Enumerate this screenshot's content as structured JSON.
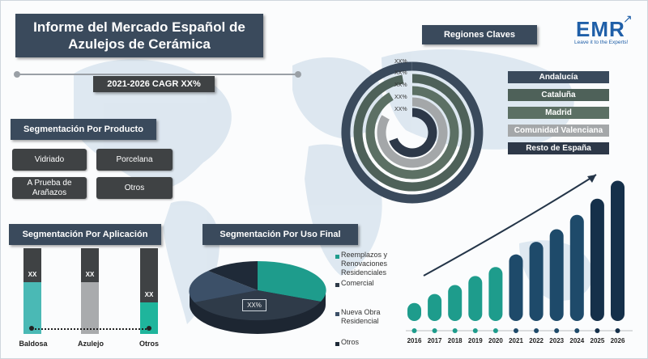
{
  "title": "Informe del Mercado Español de Azulejos de Cerámica",
  "cagr": "2021-2026 CAGR XX%",
  "logo": {
    "text": "EMR",
    "tagline": "Leave it to the Experts!"
  },
  "product": {
    "header": "Segmentación Por Producto",
    "items": [
      "Vidriado",
      "Porcelana",
      "A Prueba de Arañazos",
      "Otros"
    ]
  },
  "regions": {
    "header": "Regiones Claves",
    "items": [
      {
        "label": "Andalucía",
        "color": "#3a4a5c",
        "value_label": "XX%"
      },
      {
        "label": "Cataluña",
        "color": "#4e6159",
        "value_label": "XX%"
      },
      {
        "label": "Madrid",
        "color": "#5c7064",
        "value_label": "XX%"
      },
      {
        "label": "Comunidad Valenciana",
        "color": "#a4a7a9",
        "value_label": "XX%"
      },
      {
        "label": "Resto de España",
        "color": "#2d3848",
        "value_label": "XX%"
      }
    ]
  },
  "application": {
    "header": "Segmentación Por Aplicación",
    "categories": [
      "Baldosa",
      "Azulejo",
      "Otros"
    ],
    "bar_label": "XX",
    "colors": [
      "#4ab9b5",
      "#a9abad",
      "#1fb59c"
    ]
  },
  "end_use": {
    "header": "Segmentación Por Uso Final",
    "center_label": "XX%",
    "legend": [
      {
        "label": "Reemplazos y Renovaciones Residenciales",
        "color": "#1e9c8c"
      },
      {
        "label": "Comercial",
        "color": "#2f3b49"
      },
      {
        "label": "Nueva Obra Residencial",
        "color": "#3c5068"
      },
      {
        "label": "Otros",
        "color": "#1f2a38"
      }
    ]
  },
  "chart_data": {
    "type": "bar",
    "categories": [
      "2016",
      "2017",
      "2018",
      "2019",
      "2020",
      "2021",
      "2022",
      "2023",
      "2024",
      "2025",
      "2026"
    ],
    "values": [
      1.0,
      1.5,
      2.0,
      2.5,
      3.0,
      3.7,
      4.4,
      5.1,
      5.9,
      6.8,
      7.8
    ],
    "colors": [
      "#1e9c8c",
      "#1e9c8c",
      "#1e9c8c",
      "#1e9c8c",
      "#1e9c8c",
      "#1e4a6a",
      "#1e4a6a",
      "#1e4a6a",
      "#1e4a6a",
      "#15304a",
      "#15304a"
    ],
    "ylim": [
      0,
      8
    ],
    "xlabel": "",
    "ylabel": ""
  }
}
